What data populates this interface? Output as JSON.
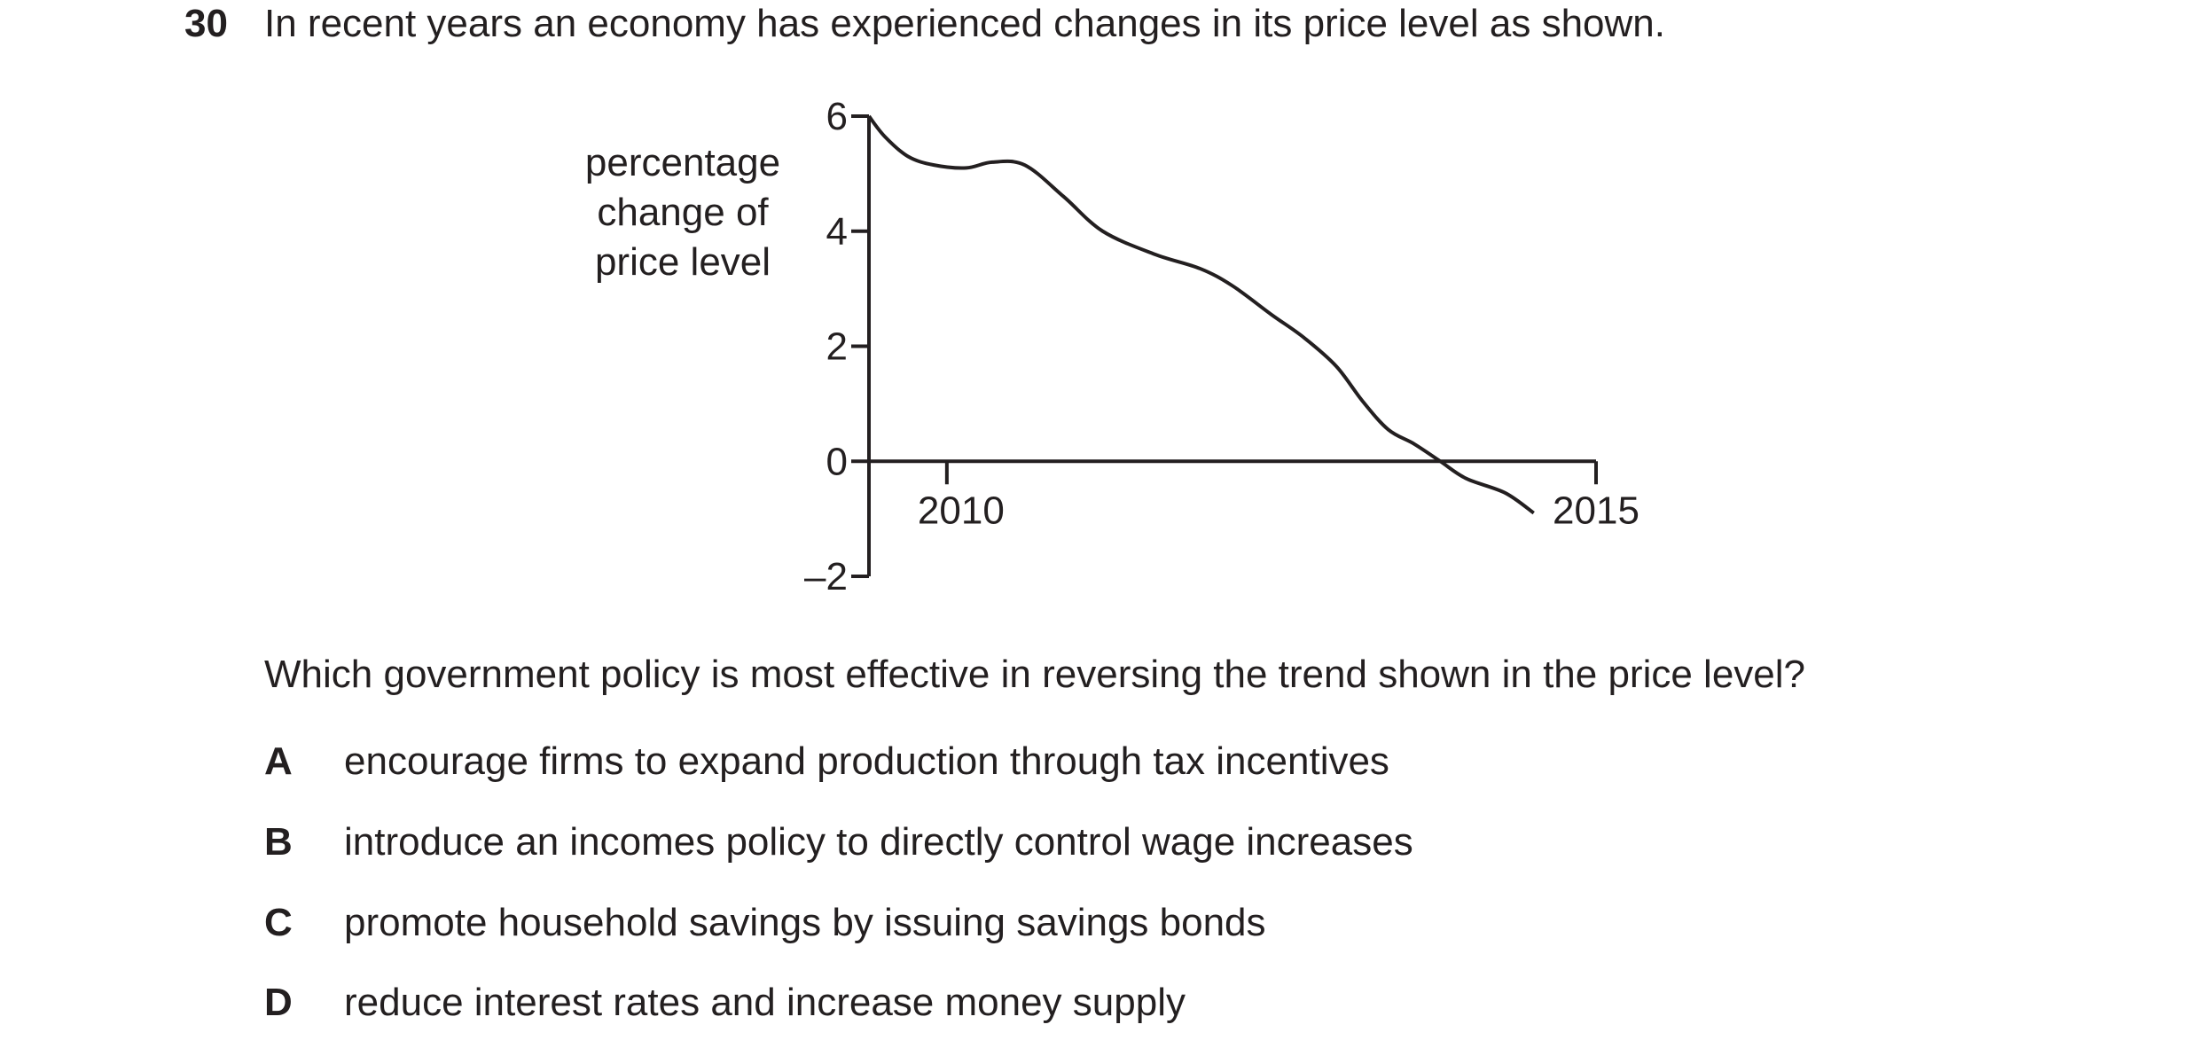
{
  "question": {
    "number": "30",
    "stem": "In recent years an economy has experienced changes in its price level as shown.",
    "prompt": "Which government policy is most effective in reversing the trend shown in the price level?",
    "options": [
      {
        "letter": "A",
        "text": "encourage firms to expand production through tax incentives"
      },
      {
        "letter": "B",
        "text": "introduce an incomes policy to directly control wage increases"
      },
      {
        "letter": "C",
        "text": "promote household savings by issuing savings bonds"
      },
      {
        "letter": "D",
        "text": "reduce interest rates and increase money supply"
      }
    ]
  },
  "chart_data": {
    "type": "line",
    "title": "",
    "ylabel_lines": [
      "percentage",
      "change of",
      "price level"
    ],
    "xlabel": "",
    "ylim": [
      -2,
      6
    ],
    "yticks": [
      6,
      4,
      2,
      0,
      -2
    ],
    "ytick_labels": [
      "6",
      "4",
      "2",
      "0",
      "–2"
    ],
    "xlim": [
      2009.4,
      2015
    ],
    "xticks": [
      2010,
      2015
    ],
    "xtick_labels": [
      "2010",
      "2015"
    ],
    "grid": false,
    "series": [
      {
        "x": [
          2009.4,
          2009.52,
          2009.7,
          2009.9,
          2010.15,
          2010.35,
          2010.6,
          2010.9,
          2011.2,
          2011.6,
          2011.95,
          2012.2,
          2012.5,
          2012.75,
          2013.0,
          2013.2,
          2013.4,
          2013.6,
          2013.8,
          2014.0,
          2014.3,
          2014.52
        ],
        "y": [
          6.0,
          5.65,
          5.3,
          5.15,
          5.1,
          5.2,
          5.15,
          4.6,
          4.0,
          3.6,
          3.35,
          3.05,
          2.55,
          2.15,
          1.65,
          1.05,
          0.55,
          0.3,
          0.0,
          -0.3,
          -0.55,
          -0.9
        ]
      }
    ]
  }
}
